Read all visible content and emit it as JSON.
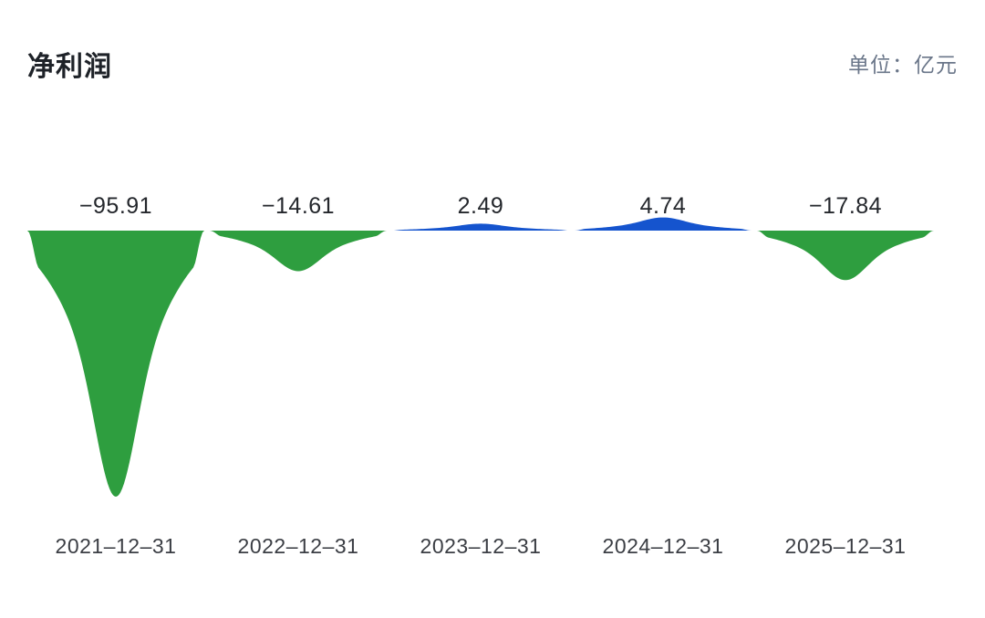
{
  "header": {
    "title": "净利润",
    "unit_label": "单位：亿元"
  },
  "colors": {
    "positive": "#1554CE",
    "negative": "#2E9E3F",
    "title_text": "#1E2228",
    "unit_text": "#6A7689",
    "value_label_text": "#24272C",
    "axis_label_text": "#3B3E44",
    "background": "#FFFFFF"
  },
  "chart_data": {
    "type": "area",
    "subtype": "smooth-spike-per-category",
    "title": "净利润",
    "unit": "亿元",
    "categories": [
      "2021–12–31",
      "2022–12–31",
      "2023–12–31",
      "2024–12–31",
      "2025–12–31"
    ],
    "values": [
      -95.91,
      -14.61,
      2.49,
      4.74,
      -17.84
    ],
    "value_labels": [
      "−95.91",
      "−14.61",
      "2.49",
      "4.74",
      "−17.84"
    ],
    "baseline": 0,
    "positive_color": "#1554CE",
    "negative_color": "#2E9E3F",
    "grid": false,
    "legend": "none",
    "ylabel": "",
    "xlabel": "",
    "note": "negative values drawn as green spikes below baseline, positive values as blue bumps above baseline; value labels above baseline, dates below chart"
  }
}
